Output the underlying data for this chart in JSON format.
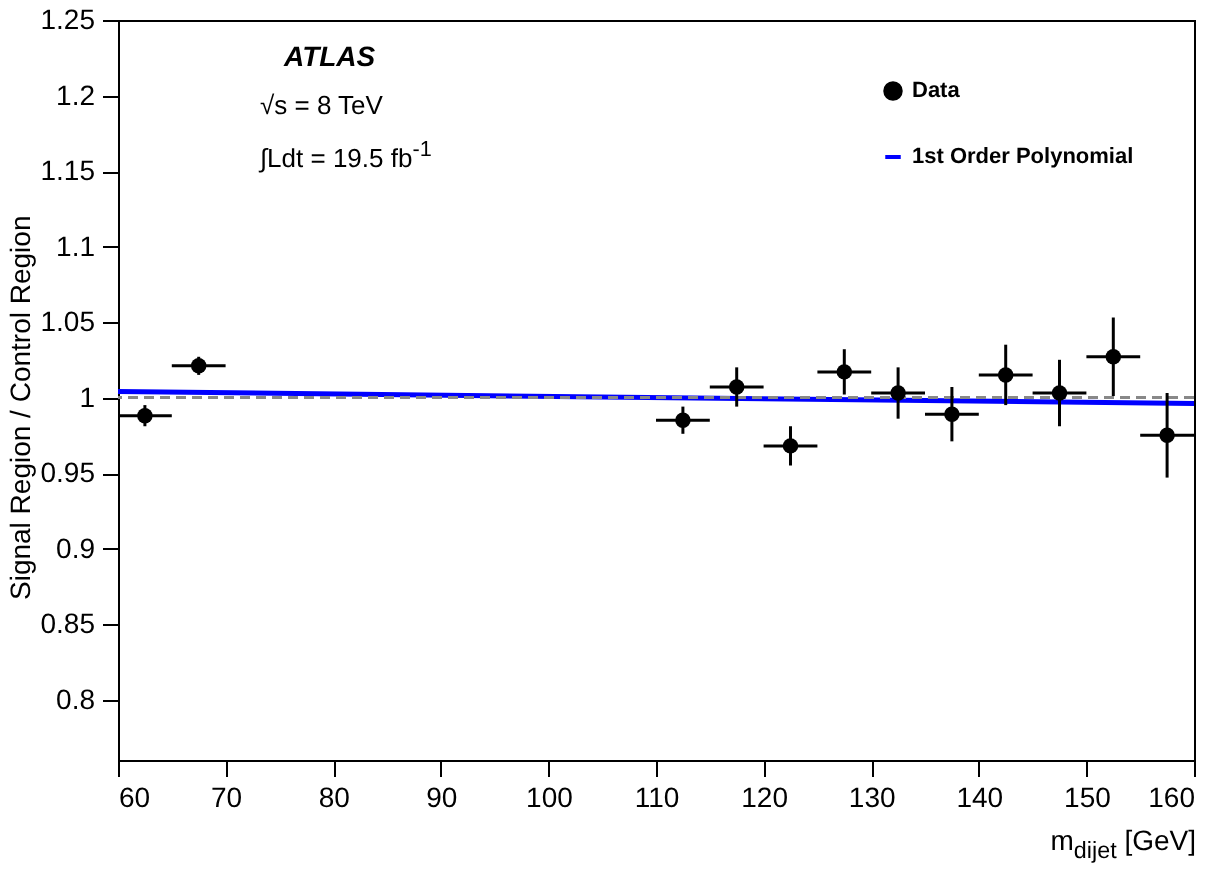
{
  "chart_data": {
    "type": "scatter",
    "xlabel": "m$_{dijet}$ [GeV]",
    "ylabel": "Signal Region / Control Region",
    "annotations": [
      "ATLAS",
      "√s = 8 TeV",
      "∫Ldt = 19.5 fb$^{-1}$"
    ],
    "xlim": [
      60,
      160
    ],
    "xticks": [
      60,
      70,
      80,
      90,
      100,
      110,
      120,
      130,
      140,
      150,
      160
    ],
    "ylim": [
      0.76,
      1.25
    ],
    "yticks": [
      0.8,
      0.85,
      0.9,
      0.95,
      1,
      1.05,
      1.1,
      1.15,
      1.2,
      1.25
    ],
    "legend": "top right",
    "ref_lines": [
      {
        "axis": "y",
        "value": 1,
        "color": "#888888",
        "line_style": "dashed"
      }
    ],
    "series": [
      {
        "name": "Data",
        "marker": "circle",
        "color": "#000000",
        "x": [
          62.5,
          67.5,
          112.5,
          117.5,
          122.5,
          127.5,
          132.5,
          137.5,
          142.5,
          147.5,
          152.5,
          157.5
        ],
        "values": [
          0.988,
          1.021,
          0.985,
          1.007,
          0.968,
          1.017,
          1.003,
          0.989,
          1.015,
          1.003,
          1.027,
          0.975
        ],
        "errors": [
          0.007,
          0.006,
          0.009,
          0.013,
          0.013,
          0.015,
          0.017,
          0.018,
          0.02,
          0.022,
          0.026,
          0.028
        ],
        "xerrors": [
          2.5,
          2.5,
          2.5,
          2.5,
          2.5,
          2.5,
          2.5,
          2.5,
          2.5,
          2.5,
          2.5,
          2.5
        ]
      },
      {
        "name": "1st Order Polynomial",
        "type": "line",
        "color": "#0000ff",
        "x": [
          60,
          160
        ],
        "values": [
          1.004,
          0.996
        ]
      }
    ]
  }
}
